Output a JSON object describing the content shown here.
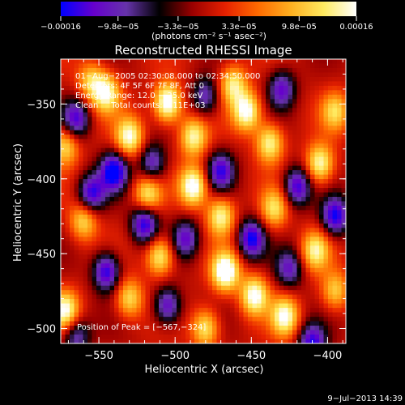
{
  "chart_data": {
    "type": "heatmap",
    "title": "Reconstructed RHESSI Image",
    "xlabel": "Heliocentric X (arcsec)",
    "ylabel": "Heliocentric Y (arcsec)",
    "xlim": [
      -575,
      -388
    ],
    "ylim": [
      -510,
      -320
    ],
    "x_ticks": [
      -550,
      -500,
      -450,
      -400
    ],
    "x_tick_labels": [
      "−550",
      "−500",
      "−450",
      "−400"
    ],
    "y_ticks": [
      -350,
      -400,
      -450,
      -500
    ],
    "y_tick_labels": [
      "−350",
      "−400",
      "−450",
      "−500"
    ],
    "colorbar": {
      "range": [
        -0.00016,
        0.00016
      ],
      "ticks": [
        -0.00016,
        -9.8e-05,
        -3.3e-05,
        3.3e-05,
        9.8e-05,
        0.00016
      ],
      "tick_labels": [
        "−0.00016",
        "−9.8e−05",
        "−3.3e−05",
        "3.3e−05",
        "9.8e−05",
        "0.00016"
      ],
      "units": "(photons cm⁻² s⁻¹ asec⁻²)",
      "colors": [
        "#0000ff",
        "#6600cc",
        "#6633aa",
        "#000000",
        "#9a0000",
        "#e52000",
        "#ff6a00",
        "#ffb020",
        "#ffea60",
        "#ffffff"
      ]
    },
    "annotations": {
      "line1": "01−Aug−2005 02:30:08.000 to 02:34:50.000",
      "line2": "Detectors: 4F 5F 6F 7F 8F, Att 0",
      "line3": "Energy Range: 12.0 − 25.0 keV",
      "line4": "Clean     Total counts: 4.11E+03",
      "peak": "Position of Peak = [−567,−324]"
    },
    "peak": {
      "x": -567,
      "y": -324
    },
    "blobs": [
      {
        "x": -505,
        "y": -349,
        "amp": 1.6
      },
      {
        "x": -453,
        "y": -355,
        "amp": 1.4
      },
      {
        "x": -462,
        "y": -337,
        "amp": 1.1
      },
      {
        "x": -545,
        "y": -343,
        "amp": 1.2
      },
      {
        "x": -530,
        "y": -372,
        "amp": 1.3
      },
      {
        "x": -488,
        "y": -372,
        "amp": 1.2
      },
      {
        "x": -438,
        "y": -376,
        "amp": 1.2
      },
      {
        "x": -405,
        "y": -390,
        "amp": 1.3
      },
      {
        "x": -572,
        "y": -378,
        "amp": 1.0
      },
      {
        "x": -488,
        "y": -405,
        "amp": 1.5
      },
      {
        "x": -470,
        "y": -425,
        "amp": 1.2
      },
      {
        "x": -518,
        "y": -410,
        "amp": 1.1
      },
      {
        "x": -435,
        "y": -420,
        "amp": 1.0
      },
      {
        "x": -408,
        "y": -448,
        "amp": 1.1
      },
      {
        "x": -560,
        "y": -428,
        "amp": 1.0
      },
      {
        "x": -467,
        "y": -462,
        "amp": 1.6
      },
      {
        "x": -510,
        "y": -452,
        "amp": 1.2
      },
      {
        "x": -448,
        "y": -478,
        "amp": 1.4
      },
      {
        "x": -428,
        "y": -492,
        "amp": 1.3
      },
      {
        "x": -572,
        "y": -488,
        "amp": 1.3
      },
      {
        "x": -530,
        "y": -480,
        "amp": 1.0
      },
      {
        "x": -480,
        "y": -500,
        "amp": 1.1
      },
      {
        "x": -395,
        "y": -475,
        "amp": 0.9
      },
      {
        "x": -555,
        "y": -335,
        "amp": 0.9
      },
      {
        "x": -395,
        "y": -355,
        "amp": 0.9
      },
      {
        "x": -540,
        "y": -395,
        "amp": -1.4
      },
      {
        "x": -555,
        "y": -410,
        "amp": -1.2
      },
      {
        "x": -520,
        "y": -430,
        "amp": -1.3
      },
      {
        "x": -545,
        "y": -462,
        "amp": -1.3
      },
      {
        "x": -505,
        "y": -485,
        "amp": -1.1
      },
      {
        "x": -450,
        "y": -440,
        "amp": -1.3
      },
      {
        "x": -470,
        "y": -395,
        "amp": -1.1
      },
      {
        "x": -420,
        "y": -405,
        "amp": -1.2
      },
      {
        "x": -395,
        "y": -425,
        "amp": -1.3
      },
      {
        "x": -410,
        "y": -510,
        "amp": -1.2
      },
      {
        "x": -565,
        "y": -360,
        "amp": -1.1
      },
      {
        "x": -515,
        "y": -390,
        "amp": -1.0
      },
      {
        "x": -480,
        "y": -345,
        "amp": -0.9
      },
      {
        "x": -430,
        "y": -340,
        "amp": -1.0
      },
      {
        "x": -493,
        "y": -440,
        "amp": -1.0
      },
      {
        "x": -565,
        "y": -505,
        "amp": -0.9
      },
      {
        "x": -425,
        "y": -460,
        "amp": -0.9
      }
    ]
  },
  "footer": {
    "timestamp": "9−Jul−2013 14:39"
  }
}
